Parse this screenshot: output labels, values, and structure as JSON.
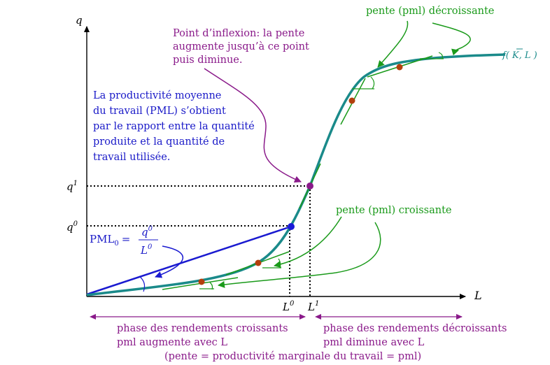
{
  "colors": {
    "curve": "#1a8a8a",
    "blue_line": "#1a1ad0",
    "green": "#1a9a1a",
    "purple": "#8a1a8a",
    "text_blue": "#1a1ac8",
    "point_brown": "#b3400d",
    "point_purple": "#8a1a8a",
    "point_blue": "#1a1ad8"
  },
  "axes": {
    "y_label": "q",
    "x_label": "L",
    "q1_label": "q",
    "q1_sup": "1",
    "q0_label": "q",
    "q0_sup": "0",
    "L0_label": "L",
    "L0_sup": "0",
    "L1_label": "L",
    "L1_sup": "1"
  },
  "curve_label": {
    "f": "f(",
    "K": "K",
    "rest": ", L )"
  },
  "annotations": {
    "pente_decroissante": "pente (pml) décroissante",
    "inflexion": [
      "Point d’inflexion: la pente",
      "augmente jusqu’à ce point",
      "puis diminue."
    ],
    "pml_def": [
      "La productivité moyenne",
      "du travail (PML) s’obtient",
      "par le rapport entre la quantité",
      "produite et la quantité de",
      "travail utilisée."
    ],
    "pente_croissante": "pente (pml) croissante",
    "pml_formula_left": "PML",
    "pml_formula_sub": "0",
    "pml_formula_eq": "=",
    "frac_num": "q",
    "frac_num_sup": "0",
    "frac_den": "L",
    "frac_den_sup": "0"
  },
  "phases": {
    "croissants_line1": "phase des rendements croissants",
    "croissants_line2": "pml augmente avec L",
    "decroissants_line1": "phase des rendements décroissants",
    "decroissants_line2": "pml diminue avec L",
    "footer": "(pente = productivité marginale du travail = pml)"
  }
}
